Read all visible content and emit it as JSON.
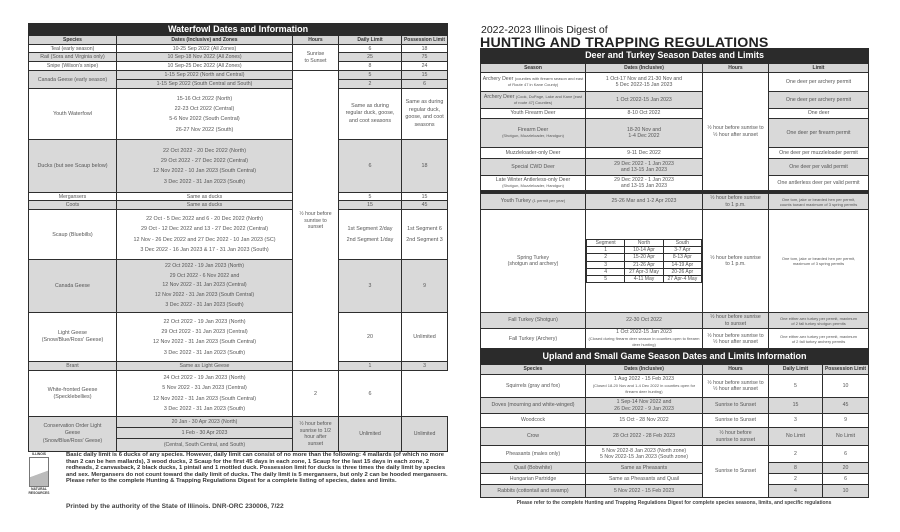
{
  "waterfowl": {
    "title": "Waterfowl Dates and Information",
    "headers": [
      "Species",
      "Dates (Inclusive) and Zones",
      "Hours",
      "Daily Limit",
      "Possession Limit"
    ],
    "hours_sunrise": "Sunrise\nto Sunset",
    "hours_half": "½ hour before\nsunrise to\nsunset",
    "hours_cons": "½ hour before\nsunrise to 1/2\nhour after\nsunset",
    "rows": [
      {
        "species": "Teal (early season)",
        "dates": "10-25 Sep 2022 (All Zones)",
        "daily": "6",
        "poss": "18"
      },
      {
        "species": "Rail (Sora and Virginia only)",
        "dates": "10 Sep-18 Nov 2022 (All Zones)",
        "daily": "25",
        "poss": "75"
      },
      {
        "species": "Snipe (Wilson's snipe)",
        "dates": "10 Sep-25 Dec 2022 (All Zones)",
        "daily": "8",
        "poss": "24"
      },
      {
        "species": "Canada Geese (early season)",
        "dates": "1-15 Sep 2022 (North and Central)",
        "daily": "5",
        "poss": "15",
        "dates2": "1-15 Sep 2022 (South Central and South)",
        "daily2": "2",
        "poss2": "6"
      },
      {
        "species": "Youth Waterfowl",
        "dates": "15-16 Oct 2022 (North)\n22-23 Oct 2022 (Central)\n5-6 Nov 2022 (South Central)\n26-27 Nov 2022 (South)",
        "daily": "Same as during\nregular duck, goose,\nand coot seasons",
        "poss": "Same as during\nregular duck,\ngoose, and coot\nseasons"
      },
      {
        "species": "Ducks (but see Scaup below)",
        "dates": "22 Oct 2022 - 20 Dec 2022 (North)\n29 Oct 2022 - 27 Dec 2022 (Central)\n12 Nov 2022 - 10 Jan 2023 (South Central)\n3 Dec 2022 - 31 Jan 2023 (South)",
        "daily": "6",
        "poss": "18"
      },
      {
        "species": "Mergansers",
        "dates": "Same as ducks",
        "daily": "5",
        "poss": "15"
      },
      {
        "species": "Coots",
        "dates": "Same as ducks",
        "daily": "15",
        "poss": "45"
      },
      {
        "species": "Scaup (Bluebills)",
        "dates": "22 Oct - 5 Dec 2022 and 6 - 20 Dec 2022 (North)\n29 Oct - 12 Dec 2022 and 13 - 27 Dec 2022 (Central)\n12 Nov - 26 Dec 2022 and 27 Dec 2022 - 10 Jan 2023 (SC)\n3 Dec 2022 - 16 Jan 2023 & 17 - 31 Jan 2023 (South)",
        "daily": "1st Segment 2/day\n2nd Segment 1/day",
        "poss": "1st Segment 6\n2nd Segment 3"
      },
      {
        "species": "Canada Geese",
        "dates": "22 Oct 2022 - 19 Jan 2023 (North)\n29 Oct 2022 - 6 Nov 2022 and\n12 Nov 2022 - 31 Jan 2023 (Central)\n12 Nov 2022 - 31 Jan 2023 (South Central)\n3 Dec 2022 - 31 Jan 2023 (South)",
        "daily": "3",
        "poss": "9"
      },
      {
        "species": "Light Geese\n(Snow/Blue/Ross' Geese)",
        "dates": "22 Oct 2022 - 19 Jan 2023 (North)\n29 Oct 2022 - 31 Jan 2023 (Central)\n12 Nov 2022 - 31 Jan 2023 (South Central)\n3 Dec 2022 - 31 Jan 2023 (South)",
        "daily": "20",
        "poss": "Unlimited"
      },
      {
        "species": "Brant",
        "dates": "Same as Light Geese",
        "daily": "1",
        "poss": "3"
      },
      {
        "species": "White-fronted Geese\n(Specklebellies)",
        "dates": "24 Oct 2022 - 19 Jan 2023 (North)\n5 Nov 2022 - 31 Jan 2023 (Central)\n12 Nov 2022 - 31 Jan 2023 (South Central)\n3 Dec 2022 - 31 Jan 2023 (South)",
        "daily": "2",
        "poss": "6"
      },
      {
        "species": "Conservation Order Light\nGeese\n(Snow/Blue/Ross' Geese)",
        "dates": "20 Jan - 30 Apr 2023 (North)",
        "dates2": "1 Feb - 30 Apr 2023",
        "dates3": "(Central, South Central, and South)",
        "daily": "Unlimited",
        "poss": "Unlimited"
      }
    ]
  },
  "footer": {
    "text": "Basic daily limit is 6 ducks of any species. However, daily limit can consist of no more than the following: 4 mallards (of which no more than 2 can be hen mallards), 3 wood ducks, 2 Scaup for the first 45 days in each zone, 1 Scaup for the last 15 days in each zone, 2 redheads, 2 canvasback, 2 black ducks, 1 pintail and 1 mottled duck. Possession limit for ducks is three times the daily limit by species and sex. Mergansers do not count toward the daily limit of ducks. The daily limit is 5 mergansers, but only 2 can be hooded mergansers. Please refer to the complete Hunting & Trapping Regulations Digest for a complete listing of species, dates and limits.",
    "printed": "Printed by the authority of the State of Illinois. DNR-ORC 230006, 7/22",
    "logo_top": "ILLINOIS",
    "logo_bottom": "NATURAL RESOURCES"
  },
  "digest": {
    "subtitle": "2022-2023 Illinois Digest of",
    "title": "HUNTING AND TRAPPING REGULATIONS"
  },
  "deer": {
    "title": "Deer and Turkey Season Dates and Limits",
    "headers": [
      "Season",
      "Dates (Inclusive)",
      "Hours",
      "Limit"
    ],
    "hours": "½ hour before sunrise to\n½ hour after sunset",
    "rows": [
      {
        "season": "Archery Deer",
        "note": "(counties with firearm season and east of Route 47 in Kane County)",
        "dates": "1 Oct-17 Nov and 21-30 Nov and\n5 Dec 2022-15 Jan 2023",
        "limit": "One deer per archery permit"
      },
      {
        "season": "Archery Deer",
        "note": "(Cook, DuPage, Lake and Kane [east of route 47] Counties)",
        "dates": "1 Oct 2022-15 Jan 2023",
        "limit": "One deer per archery permit"
      },
      {
        "season": "Youth Firearm Deer",
        "note": "",
        "dates": "8-10 Oct 2022",
        "limit": "One deer"
      },
      {
        "season": "Firearm Deer",
        "note": "(Shotgun, Muzzleloader, Handgun)",
        "dates": "18-20 Nov and\n1-4 Dec 2022",
        "limit": "One deer per firearm permit"
      },
      {
        "season": "Muzzleloader-only Deer",
        "note": "",
        "dates": "9-11 Dec 2022",
        "limit": "One deer per muzzleloader permit"
      },
      {
        "season": "Special CWD Deer",
        "note": "",
        "dates": "29 Dec 2022 - 1 Jan 2023\nand 13-15 Jan 2023",
        "limit": "One deer per valid permit"
      },
      {
        "season": "Late Winter Antlerless-only Deer",
        "note": "(Shotgun, Muzzleloader, Handgun)",
        "dates": "29 Dec 2022 - 1 Jan 2023\nand 13-15 Jan 2023",
        "limit": "One antlerless deer per valid permit"
      }
    ],
    "turkey": [
      {
        "season": "Youth Turkey",
        "note": "(1 permit per year)",
        "dates": "25-26 Mar and 1-2 Apr 2023",
        "hours": "½ hour before sunrise\nto 1 p.m.",
        "limit": "One tom, jake or bearded hen per permit,\ncounts toward maximum of 3 spring permits"
      },
      {
        "season": "Spring Turkey\n(shotgun and archery)",
        "hours": "½ hour before sunrise\nto 1 p.m.",
        "limit": "One tom, jake or bearded hen per permit,\nmaximum of 3 spring permits",
        "segment_headers": [
          "Segment",
          "North",
          "South"
        ],
        "segments": [
          [
            "1",
            "10-14 Apr",
            "3-7 Apr"
          ],
          [
            "2",
            "15-20 Apr",
            "8-13 Apr"
          ],
          [
            "3",
            "21-26 Apr",
            "14-19 Apr"
          ],
          [
            "4",
            "27 Apr-3 May",
            "20-26 Apr"
          ],
          [
            "5",
            "4-11 May",
            "27 Apr-4 May"
          ]
        ]
      },
      {
        "season": "Fall Turkey (Shotgun)",
        "dates": "22-30 Oct 2022",
        "hours": "½ hour before sunrise\nto sunset",
        "limit": "One either-sex turkey per permit, maximum\nof 2 fall turkey shotgun permits"
      },
      {
        "season": "Fall Turkey (Archery)",
        "dates": "1 Oct 2022-15 Jan 2023",
        "note": "(Closed during firearm deer season in counties open to firearm deer hunting)",
        "hours": "½ hour before sunrise to\n½ hour after sunset",
        "limit": "One either-sex turkey per permit, maximum\nof 2 fall turkey archery permits"
      }
    ]
  },
  "upland": {
    "title": "Upland and Small Game Season Dates and Limits Information",
    "headers": [
      "Species",
      "Dates (Inclusive)",
      "Hours",
      "Daily Limit",
      "Possession Limit"
    ],
    "rows": [
      {
        "species": "Squirrels (gray and fox)",
        "dates": "1 Aug 2022 - 15 Feb 2023",
        "note": "(Closed 18-20 Nov and 1-4 Dec 2022 in counties open for firearm deer hunting)",
        "hours": "½ hour before sunrise to\n½ hour after sunset",
        "daily": "5",
        "poss": "10"
      },
      {
        "species": "Doves (mourning and white-winged)",
        "dates": "1 Sep-14 Nov 2022 and\n26 Dec 2022 - 9 Jan 2023",
        "hours": "Sunrise to Sunset",
        "daily": "15",
        "poss": "45"
      },
      {
        "species": "Woodcock",
        "dates": "15 Oct - 28 Nov 2022",
        "hours": "Sunrise to Sunset",
        "daily": "3",
        "poss": "9"
      },
      {
        "species": "Crow",
        "dates": "28 Oct 2022 - 28 Feb 2023",
        "hours": "½ hour before\nsunrise to sunset",
        "daily": "No Limit",
        "poss": "No Limit"
      },
      {
        "species": "Pheasants (males only)",
        "dates": "5 Nov 2022-8 Jan 2023 (North zone)\n5 Nov 2022-15 Jan 2023 (South zone)",
        "hours": "Sunrise to Sunset",
        "daily": "2",
        "poss": "6"
      },
      {
        "species": "Quail (Bobwhite)",
        "dates": "Same as Pheasants",
        "daily": "8",
        "poss": "20"
      },
      {
        "species": "Hungarian Partridge",
        "dates": "Same as Pheasants and Quail",
        "daily": "2",
        "poss": "6"
      },
      {
        "species": "Rabbits (cottontail and swamp)",
        "dates": "5 Nov 2022 - 15 Feb 2023",
        "daily": "4",
        "poss": "10"
      }
    ],
    "note": "Please refer to the complete Hunting and Trapping Regulations Digest for complete species seasons, limits, and specific regulations"
  }
}
